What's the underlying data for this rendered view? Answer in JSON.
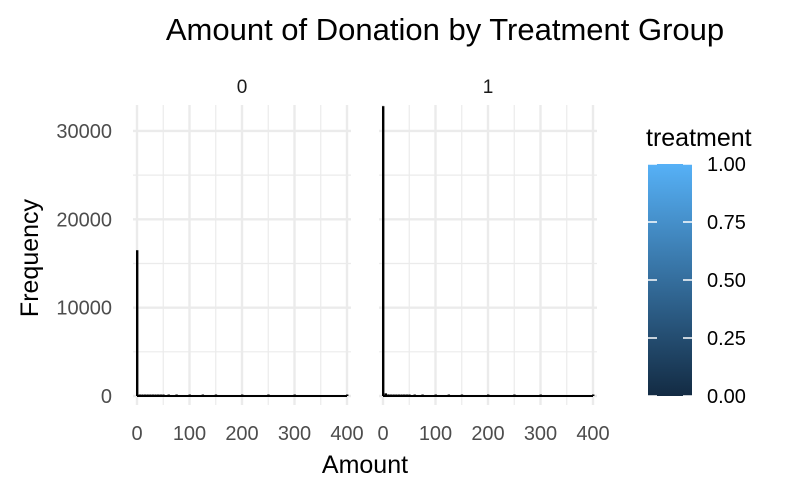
{
  "chart_data": {
    "type": "bar",
    "title": "Amount of Donation by Treatment Group",
    "xlabel": "Amount",
    "ylabel": "Frequency",
    "facet_variable": "treatment",
    "xlim": [
      0,
      400
    ],
    "ylim": [
      0,
      33500
    ],
    "x_ticks": [
      0,
      100,
      200,
      300,
      400
    ],
    "y_ticks": [
      0,
      10000,
      20000,
      30000
    ],
    "grid": true,
    "bar_color": "#000000",
    "panels": [
      {
        "label": "0",
        "bars": [
          {
            "x": 0,
            "y": 16500
          },
          {
            "x": 5,
            "y": 150
          },
          {
            "x": 10,
            "y": 90
          },
          {
            "x": 15,
            "y": 70
          },
          {
            "x": 20,
            "y": 80
          },
          {
            "x": 25,
            "y": 80
          },
          {
            "x": 30,
            "y": 40
          },
          {
            "x": 35,
            "y": 30
          },
          {
            "x": 40,
            "y": 30
          },
          {
            "x": 45,
            "y": 20
          },
          {
            "x": 50,
            "y": 70
          },
          {
            "x": 60,
            "y": 15
          },
          {
            "x": 75,
            "y": 15
          },
          {
            "x": 100,
            "y": 30
          },
          {
            "x": 125,
            "y": 10
          },
          {
            "x": 150,
            "y": 10
          },
          {
            "x": 200,
            "y": 8
          },
          {
            "x": 250,
            "y": 5
          },
          {
            "x": 300,
            "y": 4
          },
          {
            "x": 400,
            "y": 3
          }
        ]
      },
      {
        "label": "1",
        "bars": [
          {
            "x": 0,
            "y": 32800
          },
          {
            "x": 5,
            "y": 300
          },
          {
            "x": 10,
            "y": 180
          },
          {
            "x": 15,
            "y": 140
          },
          {
            "x": 20,
            "y": 160
          },
          {
            "x": 25,
            "y": 160
          },
          {
            "x": 30,
            "y": 80
          },
          {
            "x": 35,
            "y": 60
          },
          {
            "x": 40,
            "y": 60
          },
          {
            "x": 45,
            "y": 40
          },
          {
            "x": 50,
            "y": 140
          },
          {
            "x": 60,
            "y": 30
          },
          {
            "x": 75,
            "y": 30
          },
          {
            "x": 100,
            "y": 60
          },
          {
            "x": 125,
            "y": 20
          },
          {
            "x": 150,
            "y": 20
          },
          {
            "x": 200,
            "y": 15
          },
          {
            "x": 250,
            "y": 10
          },
          {
            "x": 300,
            "y": 8
          },
          {
            "x": 400,
            "y": 6
          }
        ]
      }
    ],
    "legend": {
      "title": "treatment",
      "type": "colorbar",
      "position": "right",
      "ticks": [
        "0.00",
        "0.25",
        "0.50",
        "0.75",
        "1.00"
      ],
      "colors": [
        "#132B43",
        "#56B1F7"
      ]
    }
  }
}
